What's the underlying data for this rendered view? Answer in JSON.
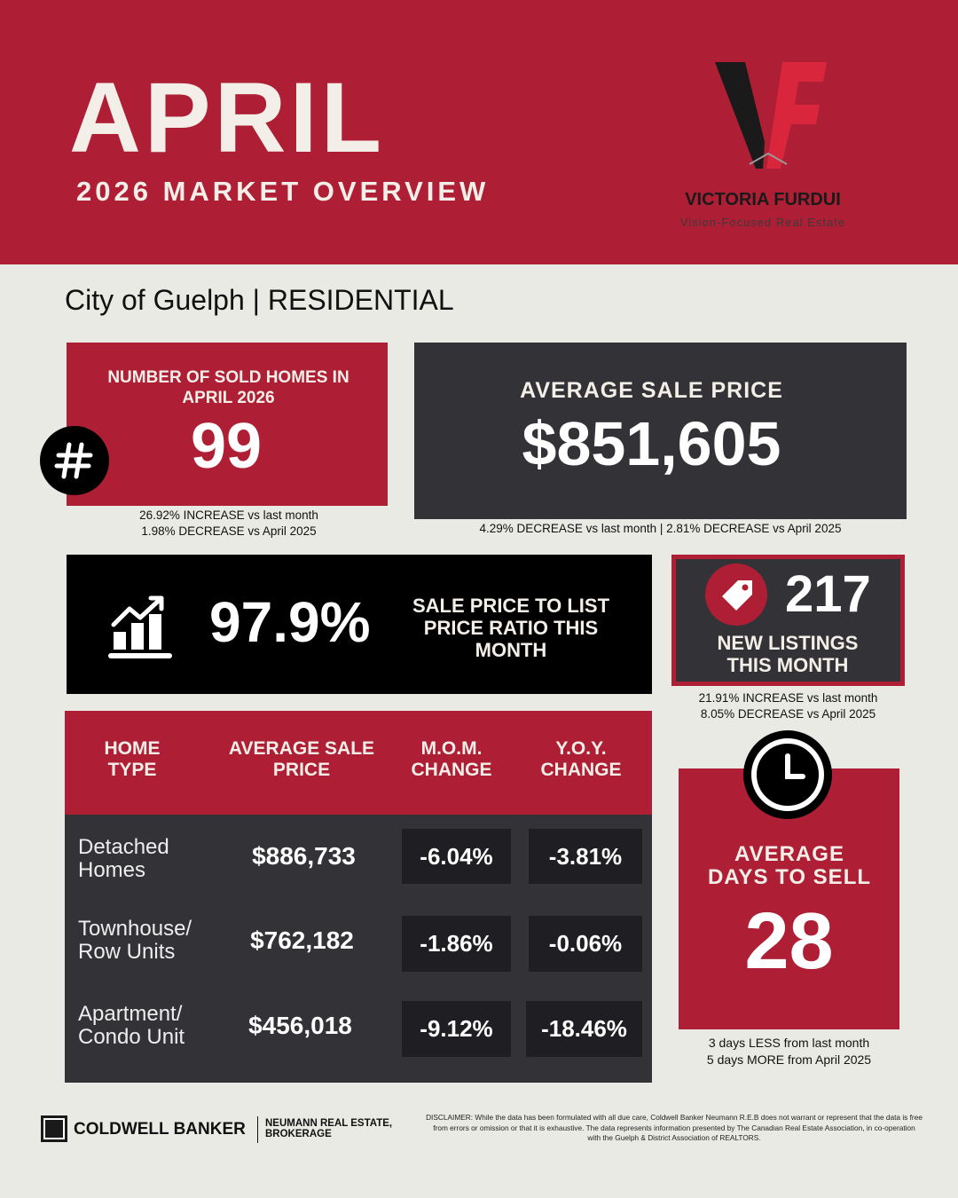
{
  "header": {
    "month": "APRIL",
    "subtitle": "2026 MARKET OVERVIEW",
    "brand_name": "VICTORIA FURDUI",
    "brand_tagline": "Vision-Focused Real Estate"
  },
  "region": "City of Guelph | RESIDENTIAL",
  "sold_homes": {
    "label": "NUMBER OF SOLD HOMES IN APRIL 2026",
    "value": "99",
    "notes": [
      "26.92% INCREASE vs last month",
      "1.98% DECREASE vs April 2025"
    ]
  },
  "average_sale_price": {
    "label": "AVERAGE SALE PRICE",
    "value": "$851,605",
    "note": "4.29% DECREASE vs last month | 2.81% DECREASE vs April 2025"
  },
  "sale_to_list": {
    "value": "97.9%",
    "label": "SALE PRICE TO LIST PRICE RATIO THIS MONTH"
  },
  "new_listings": {
    "value": "217",
    "label": "NEW LISTINGS THIS MONTH",
    "notes": [
      "21.91% INCREASE vs last month",
      "8.05% DECREASE vs April 2025"
    ]
  },
  "table": {
    "headers": [
      "HOME TYPE",
      "AVERAGE SALE PRICE",
      "M.O.M. CHANGE",
      "Y.O.Y. CHANGE"
    ],
    "rows": [
      [
        "Detached Homes",
        "$886,733",
        "-6.04%",
        "-3.81%"
      ],
      [
        "Townhouse/ Row Units",
        "$762,182",
        "-1.86%",
        "-0.06%"
      ],
      [
        "Apartment/ Condo Unit",
        "$456,018",
        "-9.12%",
        "-18.46%"
      ]
    ]
  },
  "days_to_sell": {
    "label": "AVERAGE DAYS TO SELL",
    "value": "28",
    "notes": [
      "3 days LESS from last month",
      "5 days MORE from April 2025"
    ]
  },
  "footer": {
    "brokerage": "COLDWELL BANKER",
    "brokerage_sub": "NEUMANN REAL ESTATE, BROKERAGE",
    "disclaimer": "DISCLAIMER: While the data has been formulated with all due care, Coldwell Banker Neumann R.E.B does not warrant or represent that the data is free from errors or omission or that it is exhaustive. The data represents information presented by The Canadian Real Estate Association, in co-operation with the Guelph & District Association of REALTORS."
  }
}
